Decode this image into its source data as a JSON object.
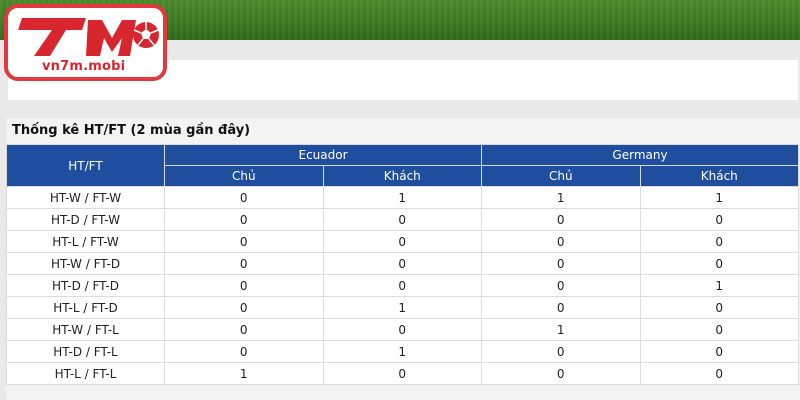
{
  "logo": {
    "domain": "vn7m.mobi",
    "wordmark": "7M",
    "icon": "soccer-ball-icon",
    "brand_color": "#d7262e"
  },
  "stats": {
    "title": "Thống kê HT/FT (2 mùa gần đây)",
    "row_header": "HT/FT",
    "teams": [
      {
        "name": "Ecuador",
        "home_label": "Chủ",
        "away_label": "Khách"
      },
      {
        "name": "Germany",
        "home_label": "Chủ",
        "away_label": "Khách"
      }
    ],
    "rows": [
      {
        "label": "HT-W / FT-W",
        "values": [
          "0",
          "1",
          "1",
          "1"
        ]
      },
      {
        "label": "HT-D / FT-W",
        "values": [
          "0",
          "0",
          "0",
          "0"
        ]
      },
      {
        "label": "HT-L / FT-W",
        "values": [
          "0",
          "0",
          "0",
          "0"
        ]
      },
      {
        "label": "HT-W / FT-D",
        "values": [
          "0",
          "0",
          "0",
          "0"
        ]
      },
      {
        "label": "HT-D / FT-D",
        "values": [
          "0",
          "0",
          "0",
          "1"
        ]
      },
      {
        "label": "HT-L / FT-D",
        "values": [
          "0",
          "1",
          "0",
          "0"
        ]
      },
      {
        "label": "HT-W / FT-L",
        "values": [
          "0",
          "0",
          "1",
          "0"
        ]
      },
      {
        "label": "HT-D / FT-L",
        "values": [
          "0",
          "1",
          "0",
          "0"
        ]
      },
      {
        "label": "HT-L / FT-L",
        "values": [
          "1",
          "0",
          "0",
          "0"
        ]
      }
    ],
    "header_color": "#1f4e9e"
  }
}
